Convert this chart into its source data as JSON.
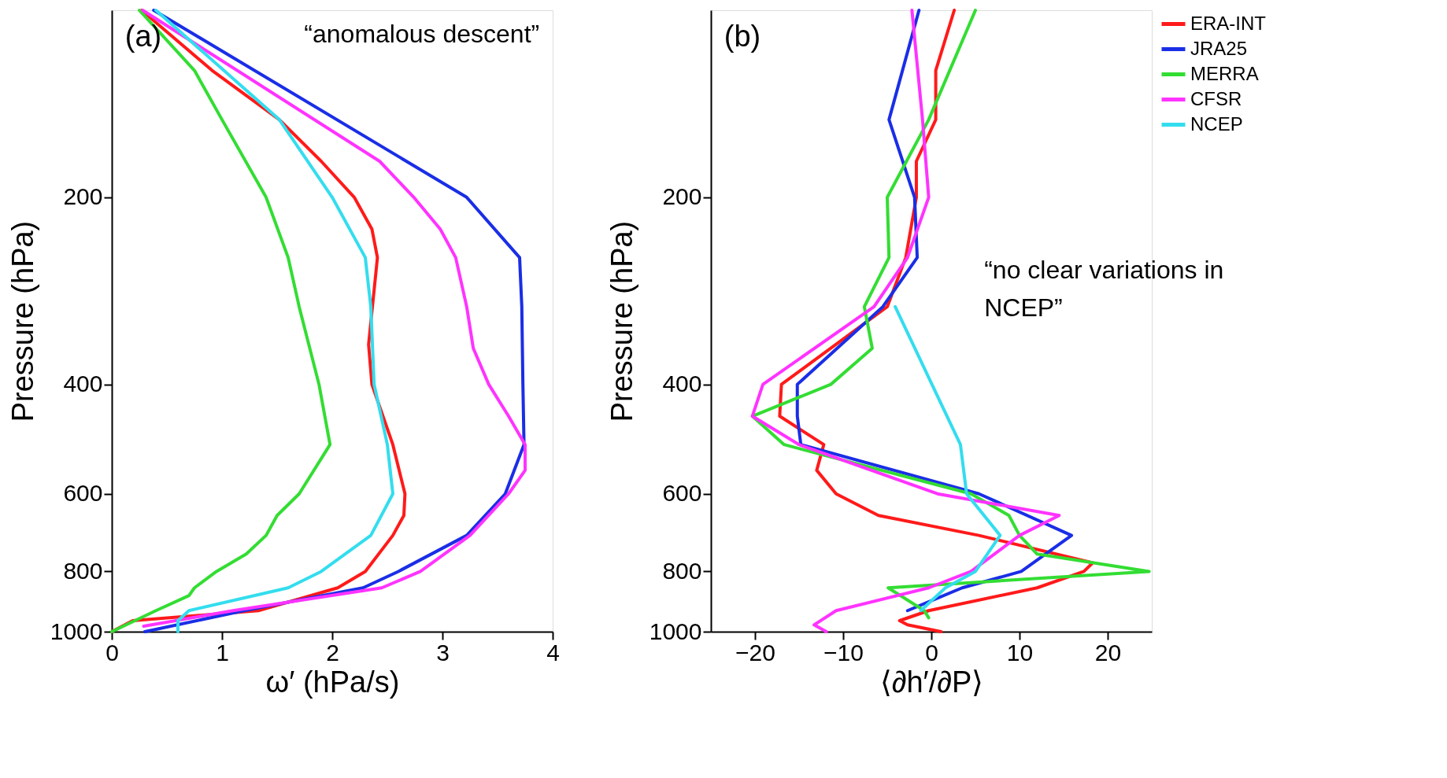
{
  "chart_data": [
    {
      "type": "line",
      "xlabel": "ω′ (hPa/s)",
      "ylabel": "Pressure (hPa)",
      "xlim": [
        0,
        4
      ],
      "xticks": [
        0,
        1,
        2,
        3,
        4
      ],
      "ylim": [
        1000,
        100
      ],
      "yticks": [
        200,
        400,
        600,
        800,
        1000
      ],
      "log": "y",
      "grid": false,
      "legend": false,
      "annotations": [
        "(a)",
        "“anomalous descent”"
      ],
      "series": [
        {
          "color": "#ff1a1a",
          "x": [
            0.27,
            0.91,
            1.52,
            1.9,
            2.2,
            2.36,
            2.41,
            2.33,
            2.36,
            2.55,
            2.66,
            2.65,
            2.55,
            2.3,
            2.05,
            1.33,
            0.19,
            0.0
          ],
          "values": [
            100,
            125,
            150,
            175,
            200,
            225,
            250,
            345,
            400,
            500,
            600,
            650,
            700,
            800,
            850,
            925,
            960,
            1000
          ]
        },
        {
          "color": "#1a2ee6",
          "x": [
            0.38,
            3.22,
            3.7,
            3.72,
            3.73,
            3.74,
            3.57,
            3.22,
            2.6,
            2.28,
            1.2,
            0.3
          ],
          "values": [
            100,
            200,
            250,
            300,
            400,
            500,
            600,
            700,
            800,
            850,
            925,
            1000
          ]
        },
        {
          "color": "#33dd33",
          "x": [
            0.25,
            0.75,
            1.0,
            1.4,
            1.6,
            1.7,
            1.88,
            1.98,
            1.7,
            1.5,
            1.4,
            1.22,
            0.95,
            0.75,
            0.7,
            0.4,
            0.0
          ],
          "values": [
            100,
            125,
            150,
            200,
            250,
            300,
            400,
            500,
            600,
            650,
            700,
            750,
            800,
            850,
            875,
            925,
            1000
          ]
        },
        {
          "color": "#ff33ff",
          "x": [
            0.28,
            2.43,
            2.74,
            2.98,
            3.12,
            3.22,
            3.28,
            3.42,
            3.6,
            3.75,
            3.75,
            3.6,
            3.25,
            2.8,
            2.45,
            1.1,
            0.29
          ],
          "values": [
            100,
            175,
            200,
            225,
            250,
            300,
            350,
            400,
            450,
            500,
            550,
            600,
            700,
            800,
            850,
            925,
            980
          ]
        },
        {
          "color": "#33ddee",
          "x": [
            0.4,
            1.52,
            2.0,
            2.3,
            2.35,
            2.38,
            2.5,
            2.55,
            2.35,
            1.9,
            1.6,
            0.7,
            0.6,
            0.6
          ],
          "values": [
            100,
            150,
            200,
            250,
            300,
            400,
            500,
            600,
            700,
            800,
            850,
            925,
            960,
            1000
          ]
        }
      ]
    },
    {
      "type": "line",
      "xlabel": "⟨∂h′/∂P⟩",
      "ylabel": "Pressure (hPa)",
      "xlim": [
        -25,
        25
      ],
      "xticks": [
        -20,
        -10,
        0,
        10,
        20
      ],
      "ylim": [
        1000,
        100
      ],
      "yticks": [
        200,
        400,
        600,
        800,
        1000
      ],
      "log": "y",
      "grid": false,
      "legend": "right",
      "annotations": [
        "(b)",
        "“no clear variations in NCEP”"
      ],
      "series": [
        {
          "name": "ERA-INT",
          "color": "#ff1a1a",
          "x": [
            2.6,
            0.5,
            0.5,
            -1.7,
            -1.7,
            -2.9,
            -5.0,
            -17.0,
            -17.2,
            -12.2,
            -13.0,
            -10.8,
            -6.0,
            5.4,
            18.3,
            17.3,
            12.0,
            -0.3,
            -3.6,
            -2.7,
            1.1
          ],
          "values": [
            100,
            125,
            150,
            175,
            200,
            250,
            300,
            400,
            450,
            500,
            550,
            600,
            650,
            700,
            775,
            800,
            850,
            925,
            960,
            975,
            1000
          ]
        },
        {
          "name": "JRA25",
          "color": "#1a2ee6",
          "x": [
            -1.4,
            -4.8,
            -1.9,
            -1.6,
            -5.5,
            -15.2,
            -15.2,
            -14.8,
            5.4,
            15.9,
            10.2,
            3.5,
            -2.7
          ],
          "values": [
            100,
            150,
            200,
            250,
            300,
            400,
            450,
            500,
            600,
            700,
            800,
            850,
            925
          ]
        },
        {
          "name": "MERRA",
          "color": "#33dd33",
          "x": [
            5.0,
            -0.3,
            -5.0,
            -4.8,
            -7.6,
            -6.7,
            -11.4,
            -20.3,
            -16.7,
            4.5,
            8.8,
            10.0,
            12.0,
            24.7,
            -4.9,
            -0.8,
            -0.3
          ],
          "values": [
            100,
            150,
            200,
            250,
            300,
            350,
            400,
            450,
            500,
            600,
            650,
            700,
            750,
            800,
            850,
            925,
            950
          ]
        },
        {
          "name": "CFSR",
          "color": "#ff33ff",
          "x": [
            -2.2,
            -1.0,
            -0.3,
            -2.7,
            -6.5,
            -19.1,
            -20.3,
            -15.0,
            0.7,
            14.5,
            10.0,
            4.5,
            -0.3,
            -10.8,
            -13.3,
            -11.9
          ],
          "values": [
            100,
            150,
            200,
            250,
            300,
            400,
            450,
            500,
            600,
            650,
            700,
            800,
            850,
            925,
            975,
            1000
          ]
        },
        {
          "name": "NCEP",
          "color": "#33ddee",
          "x": [
            -4.1,
            3.3,
            4.0,
            7.8,
            5.0,
            1.6,
            -1.2
          ],
          "values": [
            300,
            500,
            600,
            700,
            800,
            850,
            925
          ]
        }
      ]
    }
  ]
}
